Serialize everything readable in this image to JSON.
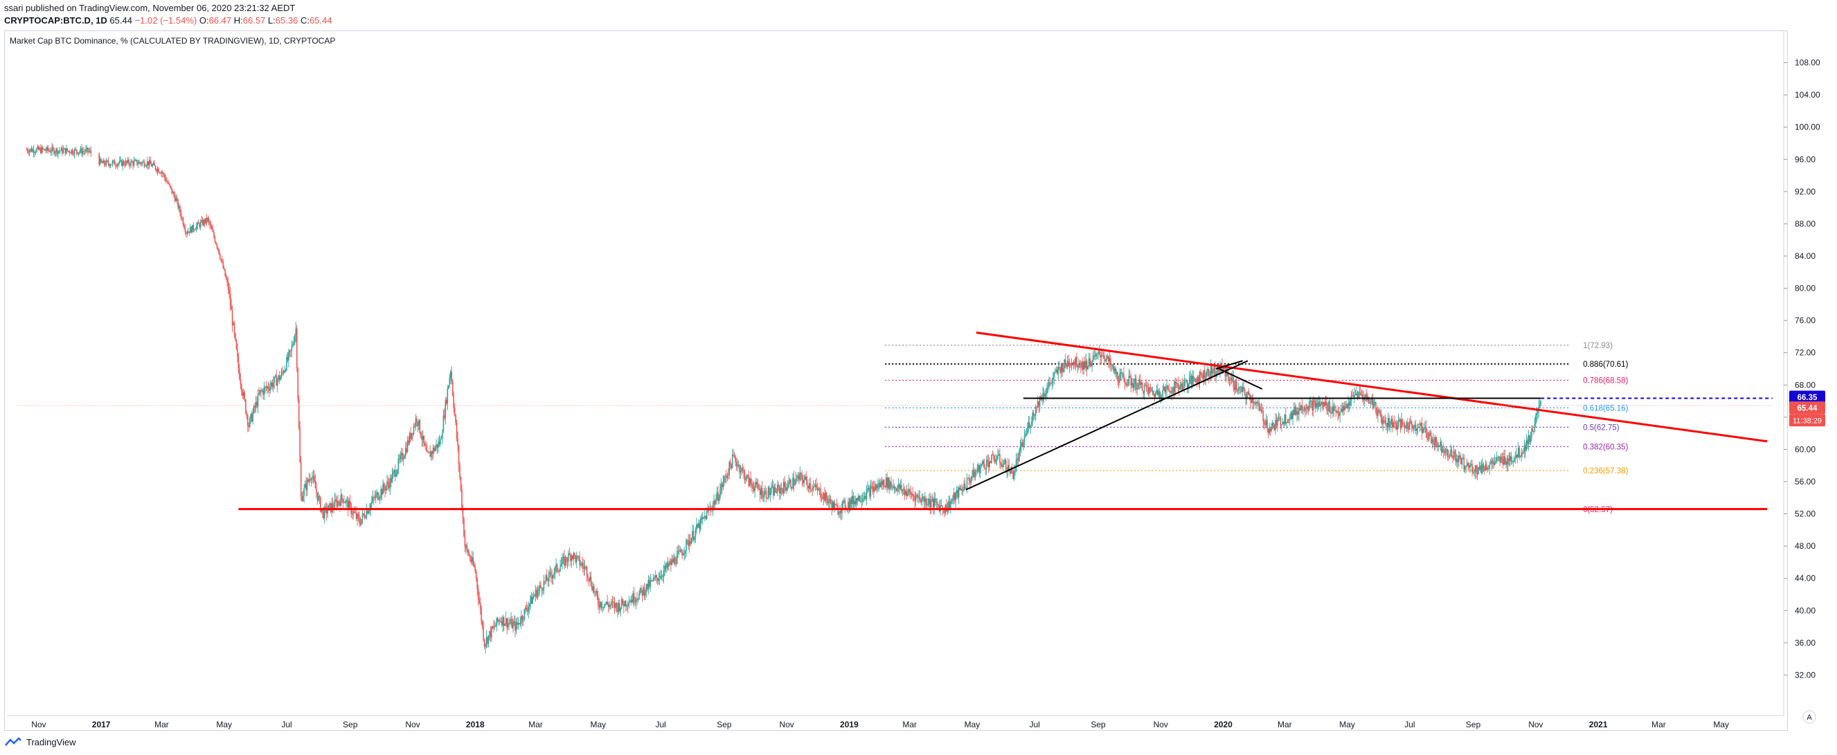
{
  "header": {
    "published": "ssari published on TradingView.com, November 06, 2020 23:21:32 AEDT",
    "symbol": "CRYPTOCAP:BTC.D, 1D",
    "last": "65.44",
    "change": "−1.02 (−1.54%)",
    "o_label": "O:",
    "o": "66.47",
    "h_label": "H:",
    "h": "66.57",
    "l_label": "L:",
    "l": "65.36",
    "c_label": "C:",
    "c": "65.44"
  },
  "chart_title": "Market Cap BTC Dominance, % (CALCULATED BY TRADINGVIEW), 1D, CRYPTOCAP",
  "footer": {
    "brand": "TradingView"
  },
  "corner_button": "A",
  "colors": {
    "up": "#26a69a",
    "down": "#ef5350",
    "trend": "#ff0000",
    "axis_text": "#131722",
    "grid": "#e0e3eb"
  },
  "chart_data": {
    "type": "candlestick",
    "title": "Market Cap BTC Dominance, % (CALCULATED BY TRADINGVIEW), 1D, CRYPTOCAP",
    "y_unit": "%",
    "ylim": [
      28,
      112
    ],
    "y_ticks": [
      "108.00",
      "104.00",
      "100.00",
      "96.00",
      "92.00",
      "88.00",
      "84.00",
      "80.00",
      "76.00",
      "72.00",
      "68.00",
      "64.00",
      "60.00",
      "56.00",
      "52.00",
      "48.00",
      "44.00",
      "40.00",
      "36.00",
      "32.00"
    ],
    "x_ticks": [
      {
        "t": "2016-11-01",
        "label": "Nov"
      },
      {
        "t": "2017-01-01",
        "label": "2017"
      },
      {
        "t": "2017-03-01",
        "label": "Mar"
      },
      {
        "t": "2017-05-01",
        "label": "May"
      },
      {
        "t": "2017-07-01",
        "label": "Jul"
      },
      {
        "t": "2017-09-01",
        "label": "Sep"
      },
      {
        "t": "2017-11-01",
        "label": "Nov"
      },
      {
        "t": "2018-01-01",
        "label": "2018"
      },
      {
        "t": "2018-03-01",
        "label": "Mar"
      },
      {
        "t": "2018-05-01",
        "label": "May"
      },
      {
        "t": "2018-07-01",
        "label": "Jul"
      },
      {
        "t": "2018-09-01",
        "label": "Sep"
      },
      {
        "t": "2018-11-01",
        "label": "Nov"
      },
      {
        "t": "2019-01-01",
        "label": "2019"
      },
      {
        "t": "2019-03-01",
        "label": "Mar"
      },
      {
        "t": "2019-05-01",
        "label": "May"
      },
      {
        "t": "2019-07-01",
        "label": "Jul"
      },
      {
        "t": "2019-09-01",
        "label": "Sep"
      },
      {
        "t": "2019-11-01",
        "label": "Nov"
      },
      {
        "t": "2020-01-01",
        "label": "2020"
      },
      {
        "t": "2020-03-01",
        "label": "Mar"
      },
      {
        "t": "2020-05-01",
        "label": "May"
      },
      {
        "t": "2020-07-01",
        "label": "Jul"
      },
      {
        "t": "2020-09-01",
        "label": "Sep"
      },
      {
        "t": "2020-11-01",
        "label": "Nov"
      },
      {
        "t": "2021-01-01",
        "label": "2021"
      },
      {
        "t": "2021-03-01",
        "label": "Mar"
      },
      {
        "t": "2021-05-01",
        "label": "May"
      }
    ],
    "price_path": [
      [
        "2016-10-20",
        97.2
      ],
      [
        "2016-12-20",
        97.0
      ],
      [
        "2017-01-01",
        95.5
      ],
      [
        "2017-02-15",
        95.6
      ],
      [
        "2017-03-01",
        94.5
      ],
      [
        "2017-03-15",
        91.0
      ],
      [
        "2017-03-25",
        87.0
      ],
      [
        "2017-04-15",
        88.5
      ],
      [
        "2017-04-25",
        85.0
      ],
      [
        "2017-05-05",
        80.0
      ],
      [
        "2017-05-15",
        70.0
      ],
      [
        "2017-05-25",
        63.0
      ],
      [
        "2017-06-05",
        67.0
      ],
      [
        "2017-06-25",
        69.0
      ],
      [
        "2017-07-05",
        72.0
      ],
      [
        "2017-07-10",
        75.0
      ],
      [
        "2017-07-15",
        54.0
      ],
      [
        "2017-07-25",
        57.0
      ],
      [
        "2017-08-05",
        52.0
      ],
      [
        "2017-08-25",
        54.0
      ],
      [
        "2017-09-10",
        51.0
      ],
      [
        "2017-09-25",
        54.0
      ],
      [
        "2017-10-10",
        56.0
      ],
      [
        "2017-10-25",
        60.0
      ],
      [
        "2017-11-05",
        64.0
      ],
      [
        "2017-11-15",
        59.0
      ],
      [
        "2017-11-28",
        61.0
      ],
      [
        "2017-12-08",
        70.0
      ],
      [
        "2017-12-15",
        60.0
      ],
      [
        "2017-12-22",
        48.0
      ],
      [
        "2018-01-01",
        45.0
      ],
      [
        "2018-01-10",
        36.0
      ],
      [
        "2018-01-25",
        39.0
      ],
      [
        "2018-02-10",
        38.0
      ],
      [
        "2018-02-28",
        42.0
      ],
      [
        "2018-03-20",
        45.0
      ],
      [
        "2018-04-05",
        47.0
      ],
      [
        "2018-04-20",
        45.0
      ],
      [
        "2018-05-01",
        41.0
      ],
      [
        "2018-05-20",
        40.5
      ],
      [
        "2018-06-10",
        42.0
      ],
      [
        "2018-07-01",
        44.5
      ],
      [
        "2018-07-20",
        47.0
      ],
      [
        "2018-08-10",
        51.0
      ],
      [
        "2018-08-25",
        54.0
      ],
      [
        "2018-09-10",
        59.0
      ],
      [
        "2018-09-25",
        56.0
      ],
      [
        "2018-10-10",
        54.5
      ],
      [
        "2018-10-25",
        55.0
      ],
      [
        "2018-11-15",
        56.5
      ],
      [
        "2018-12-05",
        54.5
      ],
      [
        "2018-12-20",
        52.5
      ],
      [
        "2019-01-10",
        54.0
      ],
      [
        "2019-02-05",
        56.0
      ],
      [
        "2019-03-01",
        54.5
      ],
      [
        "2019-03-20",
        53.5
      ],
      [
        "2019-04-05",
        52.7
      ],
      [
        "2019-04-20",
        55.0
      ],
      [
        "2019-05-10",
        58.0
      ],
      [
        "2019-05-25",
        59.0
      ],
      [
        "2019-06-10",
        57.0
      ],
      [
        "2019-06-25",
        63.0
      ],
      [
        "2019-07-05",
        66.0
      ],
      [
        "2019-07-15",
        68.0
      ],
      [
        "2019-07-25",
        70.0
      ],
      [
        "2019-08-05",
        71.0
      ],
      [
        "2019-08-20",
        70.5
      ],
      [
        "2019-09-05",
        72.0
      ],
      [
        "2019-09-20",
        69.0
      ],
      [
        "2019-10-10",
        68.0
      ],
      [
        "2019-10-25",
        67.0
      ],
      [
        "2019-11-10",
        67.5
      ],
      [
        "2019-12-01",
        68.5
      ],
      [
        "2019-12-15",
        69.5
      ],
      [
        "2020-01-01",
        70.0
      ],
      [
        "2020-01-15",
        67.5
      ],
      [
        "2020-02-01",
        66.0
      ],
      [
        "2020-02-15",
        62.5
      ],
      [
        "2020-02-25",
        63.5
      ],
      [
        "2020-03-10",
        64.5
      ],
      [
        "2020-03-20",
        65.5
      ],
      [
        "2020-04-10",
        65.5
      ],
      [
        "2020-04-25",
        64.5
      ],
      [
        "2020-05-10",
        67.0
      ],
      [
        "2020-05-25",
        66.0
      ],
      [
        "2020-06-05",
        63.5
      ],
      [
        "2020-06-25",
        63.0
      ],
      [
        "2020-07-10",
        63.0
      ],
      [
        "2020-07-25",
        61.0
      ],
      [
        "2020-08-10",
        59.5
      ],
      [
        "2020-08-25",
        58.0
      ],
      [
        "2020-09-05",
        57.5
      ],
      [
        "2020-09-25",
        58.5
      ],
      [
        "2020-10-10",
        59.0
      ],
      [
        "2020-10-20",
        60.0
      ],
      [
        "2020-10-28",
        62.0
      ],
      [
        "2020-11-03",
        64.5
      ],
      [
        "2020-11-06",
        65.44
      ]
    ],
    "current_price": {
      "value": 65.44,
      "label": "65.44",
      "countdown": "11:38:29",
      "color": "#ef5350"
    },
    "level_marker": {
      "value": 66.35,
      "label": "66.35",
      "color": "#1500d6"
    },
    "fibonacci": [
      {
        "ratio": "1",
        "value": 72.93,
        "label": "1(72.93)",
        "color": "#8c8c8c"
      },
      {
        "ratio": "0.886",
        "value": 70.61,
        "label": "0.886(70.61)",
        "color": "#000000"
      },
      {
        "ratio": "0.786",
        "value": 68.58,
        "label": "0.786(68.58)",
        "color": "#e91e63"
      },
      {
        "ratio": "0.618",
        "value": 65.16,
        "label": "0.618(65.16)",
        "color": "#2196f3"
      },
      {
        "ratio": "0.5",
        "value": 62.75,
        "label": "0.5(62.75)",
        "color": "#673ab7"
      },
      {
        "ratio": "0.382",
        "value": 60.35,
        "label": "0.382(60.35)",
        "color": "#9c27b0"
      },
      {
        "ratio": "0.236",
        "value": 57.38,
        "label": "0.236(57.38)",
        "color": "#ff9800"
      },
      {
        "ratio": "0",
        "value": 52.57,
        "label": "0(52.57)",
        "color": "#e91e63"
      }
    ],
    "fib_start": "2019-02-05",
    "fib_end": "2020-12-05",
    "drawings": [
      {
        "kind": "trendline",
        "color": "#ff0000",
        "from": [
          "2019-05-05",
          74.5
        ],
        "to": [
          "2021-06-15",
          61.0
        ]
      },
      {
        "kind": "trendline",
        "color": "#ff0000",
        "from": [
          "2017-05-15",
          52.6
        ],
        "to": [
          "2021-06-15",
          52.6
        ]
      },
      {
        "kind": "trendline",
        "color": "#000000",
        "from": [
          "2019-04-25",
          55.0
        ],
        "to": [
          "2020-01-25",
          71.0
        ]
      },
      {
        "kind": "trendline",
        "color": "#000000",
        "from": [
          "2019-12-25",
          70.0
        ],
        "to": [
          "2020-01-20",
          71.0
        ]
      },
      {
        "kind": "trendline",
        "color": "#000000",
        "from": [
          "2019-12-28",
          70.0
        ],
        "to": [
          "2020-02-08",
          67.5
        ]
      },
      {
        "kind": "hline",
        "color": "#000000",
        "from": [
          "2019-06-20",
          66.35
        ],
        "to": [
          "2020-11-06",
          66.35
        ]
      },
      {
        "kind": "hline",
        "color": "#1500d6",
        "from": [
          "2020-11-06",
          66.35
        ],
        "to": [
          "2021-06-20",
          66.35
        ],
        "dashed": true
      },
      {
        "kind": "hline",
        "color": "#ef9a9a",
        "from": [
          "2016-10-10",
          65.44
        ],
        "to": [
          "2021-06-20",
          65.44
        ],
        "dotted": true
      }
    ]
  }
}
